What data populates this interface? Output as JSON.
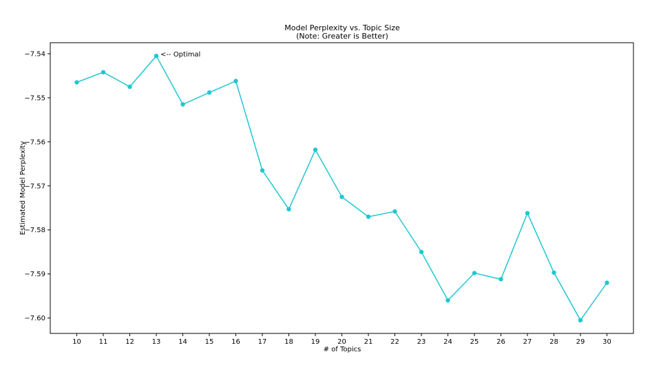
{
  "chart_data": {
    "type": "line",
    "title": "Model Perplexity vs. Topic Size",
    "subtitle": "(Note: Greater is Better)",
    "xlabel": "# of Topics",
    "ylabel": "Estimated Model Perplexity",
    "x": [
      10,
      11,
      12,
      13,
      14,
      15,
      16,
      17,
      18,
      19,
      20,
      21,
      22,
      23,
      24,
      25,
      26,
      27,
      28,
      29,
      30
    ],
    "series": [
      {
        "values": [
          -7.5465,
          -7.5442,
          -7.5475,
          -7.5405,
          -7.5515,
          -7.5488,
          -7.5462,
          -7.5665,
          -7.5753,
          -7.5618,
          -7.5725,
          -7.577,
          -7.5758,
          -7.585,
          -7.596,
          -7.5898,
          -7.5912,
          -7.5762,
          -7.5897,
          -7.6005,
          -7.592
        ],
        "color": "#1fc7cf"
      }
    ],
    "xlim": [
      9,
      31
    ],
    "ylim": [
      -7.6035,
      -7.5375
    ],
    "yticks": [
      -7.54,
      -7.55,
      -7.56,
      -7.57,
      -7.58,
      -7.59,
      -7.6
    ],
    "ytick_labels": [
      "−7.54",
      "−7.55",
      "−7.56",
      "−7.57",
      "−7.58",
      "−7.59",
      "−7.60"
    ],
    "xtick_labels": [
      "10",
      "11",
      "12",
      "13",
      "14",
      "15",
      "16",
      "17",
      "18",
      "19",
      "20",
      "21",
      "22",
      "23",
      "24",
      "25",
      "26",
      "27",
      "28",
      "29",
      "30"
    ],
    "annotations": [
      {
        "text": "<-- Optimal",
        "x": 13,
        "y": -7.5405
      }
    ],
    "grid": false,
    "legend": false
  }
}
